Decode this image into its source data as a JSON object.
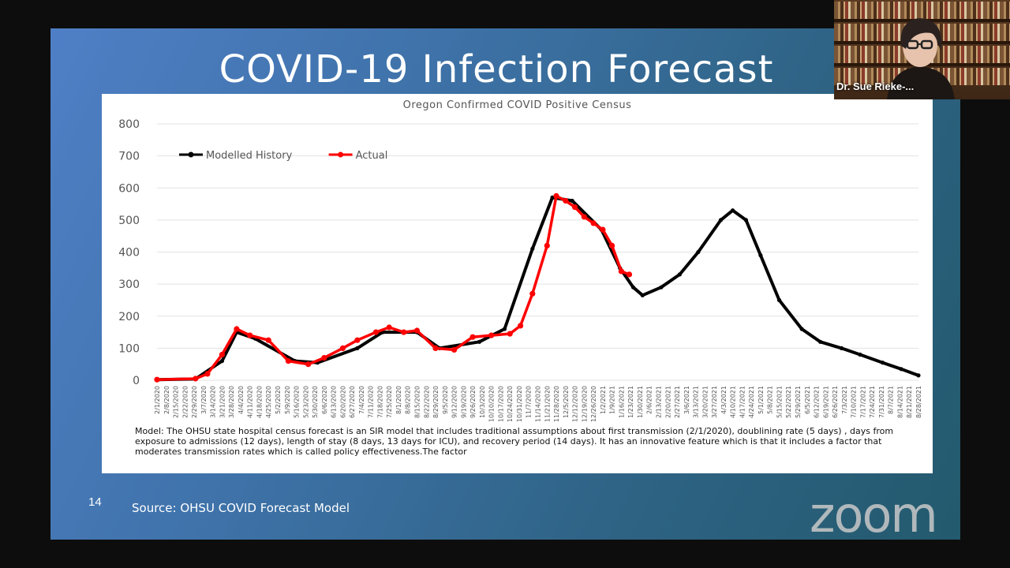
{
  "slide": {
    "title": "COVID-19 Infection Forecast",
    "number": "14",
    "source": "Source: OHSU COVID Forecast Model"
  },
  "chart_data": {
    "type": "line",
    "title": "Oregon Confirmed COVID Positive Census",
    "series": [
      {
        "name": "Modelled History",
        "color": "#000000",
        "x": [
          "2/1/2020",
          "3/1/2020",
          "3/21/2020",
          "4/1/2020",
          "4/15/2020",
          "5/15/2020",
          "6/1/2020",
          "7/1/2020",
          "7/20/2020",
          "8/15/2020",
          "9/1/2020",
          "10/1/2020",
          "10/20/2020",
          "11/10/2020",
          "11/25/2020",
          "12/10/2020",
          "1/1/2021",
          "1/15/2021",
          "1/25/2021",
          "2/1/2021",
          "2/15/2021",
          "3/1/2021",
          "3/15/2021",
          "4/1/2021",
          "4/10/2021",
          "4/20/2021",
          "5/1/2021",
          "5/15/2021",
          "6/1/2021",
          "6/15/2021",
          "7/1/2021",
          "7/15/2021",
          "8/1/2021",
          "8/15/2021",
          "8/28/2021"
        ],
        "values": [
          2,
          4,
          60,
          150,
          130,
          60,
          55,
          100,
          150,
          150,
          100,
          120,
          160,
          410,
          570,
          560,
          470,
          350,
          290,
          265,
          290,
          330,
          400,
          500,
          530,
          500,
          390,
          250,
          160,
          120,
          100,
          80,
          55,
          35,
          15
        ]
      },
      {
        "name": "Actual",
        "color": "#ff0000",
        "x": [
          "2/1/2020",
          "3/1/2020",
          "3/10/2020",
          "3/21/2020",
          "4/1/2020",
          "4/11/2020",
          "4/25/2020",
          "5/10/2020",
          "5/25/2020",
          "6/6/2020",
          "6/20/2020",
          "7/1/2020",
          "7/15/2020",
          "7/25/2020",
          "8/5/2020",
          "8/15/2020",
          "8/29/2020",
          "9/12/2020",
          "9/26/2020",
          "10/10/2020",
          "10/24/2020",
          "11/1/2020",
          "11/10/2020",
          "11/21/2020",
          "11/28/2020",
          "12/5/2020",
          "12/12/2020",
          "12/19/2020",
          "12/26/2020",
          "1/2/2021",
          "1/9/2021",
          "1/16/2021",
          "1/22/2021"
        ],
        "values": [
          2,
          5,
          20,
          80,
          160,
          140,
          125,
          60,
          50,
          70,
          100,
          125,
          150,
          165,
          150,
          155,
          100,
          95,
          135,
          140,
          145,
          170,
          270,
          420,
          575,
          560,
          540,
          510,
          490,
          470,
          420,
          340,
          330
        ]
      }
    ],
    "yticks": [
      0,
      100,
      200,
      300,
      400,
      500,
      600,
      700,
      800
    ],
    "ylim": [
      0,
      800
    ],
    "xtick_labels": [
      "2/1/2020",
      "2/8/2020",
      "2/15/2020",
      "2/22/2020",
      "2/29/2020",
      "3/7/2020",
      "3/14/2020",
      "3/21/2020",
      "3/28/2020",
      "4/4/2020",
      "4/11/2020",
      "4/18/2020",
      "4/25/2020",
      "5/2/2020",
      "5/9/2020",
      "5/16/2020",
      "5/23/2020",
      "5/30/2020",
      "6/6/2020",
      "6/13/2020",
      "6/20/2020",
      "6/27/2020",
      "7/4/2020",
      "7/11/2020",
      "7/18/2020",
      "7/25/2020",
      "8/1/2020",
      "8/8/2020",
      "8/15/2020",
      "8/22/2020",
      "8/29/2020",
      "9/5/2020",
      "9/12/2020",
      "9/19/2020",
      "9/26/2020",
      "10/3/2020",
      "10/10/2020",
      "10/17/2020",
      "10/24/2020",
      "10/31/2020",
      "11/7/2020",
      "11/14/2020",
      "11/21/2020",
      "11/28/2020",
      "12/5/2020",
      "12/12/2020",
      "12/19/2020",
      "12/26/2020",
      "1/2/2021",
      "1/9/2021",
      "1/16/2021",
      "1/23/2021",
      "1/30/2021",
      "2/6/2021",
      "2/13/2021",
      "2/20/2021",
      "2/27/2021",
      "3/6/2021",
      "3/13/2021",
      "3/20/2021",
      "3/27/2021",
      "4/3/2021",
      "4/10/2021",
      "4/17/2021",
      "4/24/2021",
      "5/1/2021",
      "5/8/2021",
      "5/15/2021",
      "5/22/2021",
      "5/29/2021",
      "6/5/2021",
      "6/12/2021",
      "6/19/2021",
      "6/26/2021",
      "7/3/2021",
      "7/10/2021",
      "7/17/2021",
      "7/24/2021",
      "7/31/2021",
      "8/7/2021",
      "8/14/2021",
      "8/21/2021",
      "8/28/2021"
    ],
    "legend": "top-left",
    "grid": true,
    "note": "Model: The OHSU state hospital census forecast is an SIR model that includes traditional assumptions about first transmission (2/1/2020), doublining rate (5  days) , days from exposure to admissions (12 days), length of stay (8 days, 13 days for ICU), and recovery period (14 days). It has an innovative feature which is that it includes a factor that moderates transmission rates which is called policy effectiveness.The factor"
  },
  "speaker": {
    "name": "Dr. Sue Rieke-..."
  },
  "app": {
    "watermark": "zoom"
  }
}
